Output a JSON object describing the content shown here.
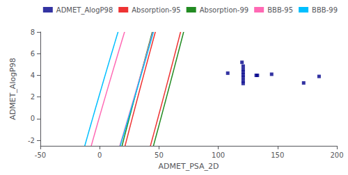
{
  "chart_data": {
    "type": "scatter",
    "xlabel": "ADMET_PSA_2D",
    "ylabel": "ADMET_AlogP98",
    "xlim": [
      -50,
      200
    ],
    "ylim": [
      -2.5,
      8
    ],
    "xticks": [
      -50,
      0,
      50,
      100,
      150,
      200
    ],
    "yticks": [
      -2,
      0,
      2,
      4,
      6,
      8
    ],
    "grid": false,
    "legend": "upper right",
    "series": [
      {
        "name": "ADMET_AlogP98",
        "type": "scatter",
        "marker": "square",
        "color": "#00008B",
        "x": [
          120,
          121,
          121,
          121,
          121,
          121,
          121,
          121,
          108,
          132,
          133,
          145,
          172,
          185
        ],
        "values": [
          5.2,
          4.85,
          4.55,
          4.3,
          4.05,
          3.8,
          3.5,
          3.25,
          4.2,
          4.0,
          4.0,
          4.1,
          3.3,
          3.9
        ]
      },
      {
        "name": "Absorption-95",
        "type": "ellipse",
        "color": "#EE3333",
        "cx": 44,
        "cy": 2.4,
        "width": 155,
        "height": 8.2,
        "angle": 22
      },
      {
        "name": "Absorption-99",
        "type": "ellipse",
        "color": "#228B22",
        "cx": 44,
        "cy": 2.4,
        "width": 192,
        "height": 10.1,
        "angle": 22
      },
      {
        "name": "BBB-95",
        "type": "ellipse",
        "color": "#FF69B4",
        "cx": 18,
        "cy": 2.4,
        "width": 143,
        "height": 8.5,
        "angle": 20
      },
      {
        "name": "BBB-99",
        "type": "ellipse",
        "color": "#00BFFF",
        "cx": 16,
        "cy": 2.6,
        "width": 178,
        "height": 10.5,
        "angle": 20
      }
    ]
  }
}
